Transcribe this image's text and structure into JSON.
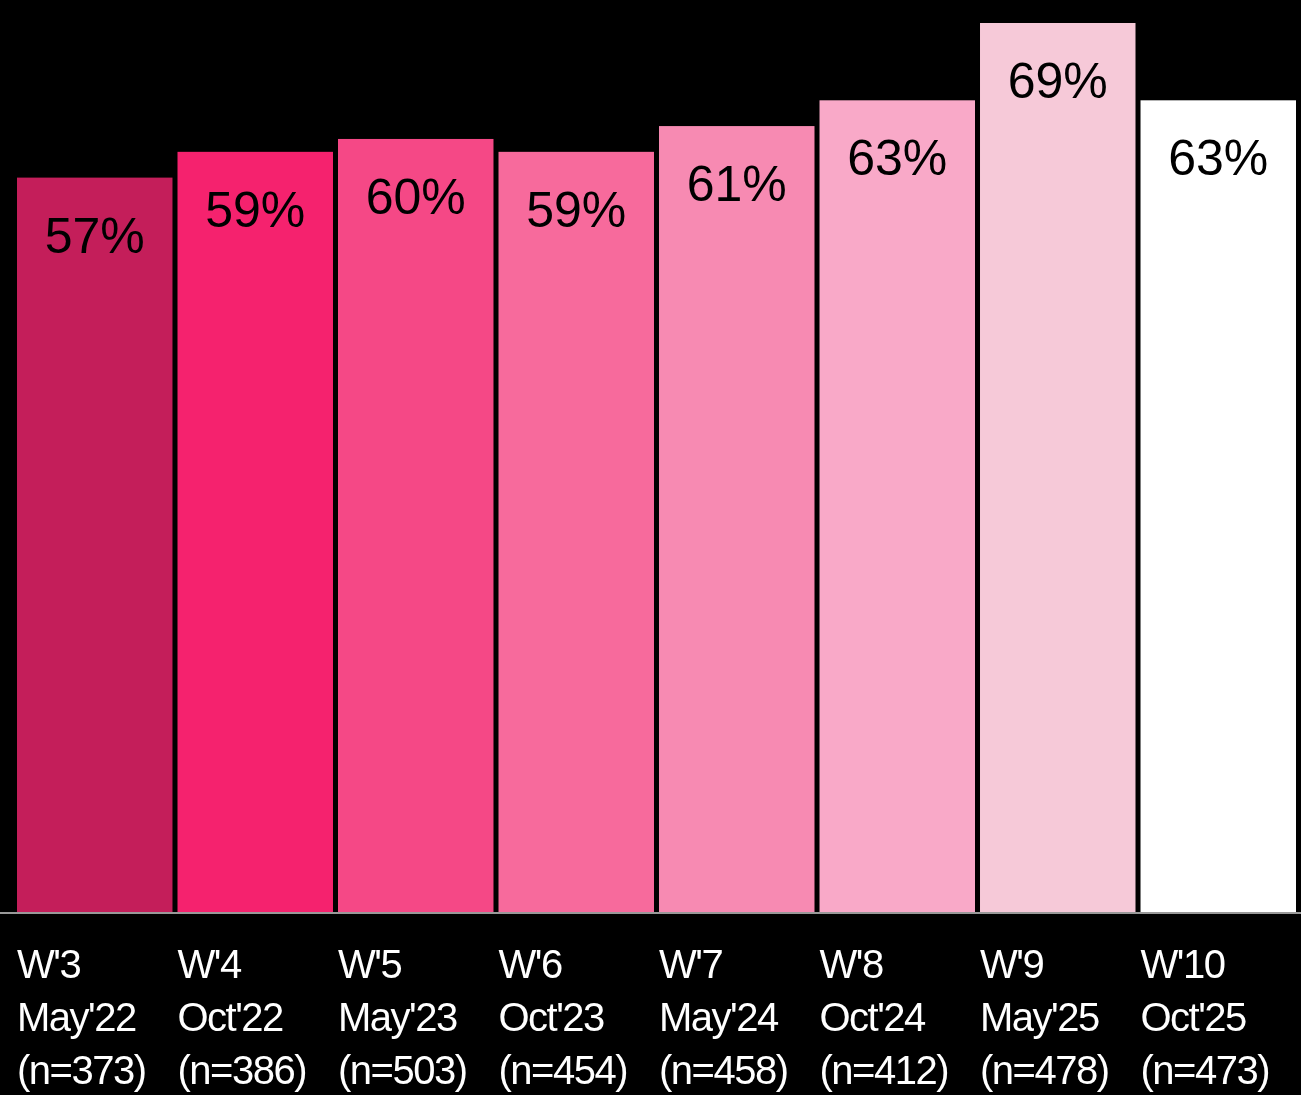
{
  "chart_data": {
    "type": "bar",
    "categories": [
      "W'3\nMay'22\n(n=373)",
      "W'4\nOct'22\n(n=386)",
      "W'5\nMay'23\n(n=503)",
      "W'6\nOct'23\n(n=454)",
      "W'7\nMay'24\n(n=458)",
      "W'8\nOct'24\n(n=412)",
      "W'9\nMay'25\n(n=478)",
      "W'10\nOct'25\n(n=473)"
    ],
    "values": [
      57,
      59,
      60,
      59,
      61,
      63,
      69,
      63
    ],
    "value_labels": [
      "57%",
      "59%",
      "60%",
      "59%",
      "61%",
      "63%",
      "69%",
      "63%"
    ],
    "colors": [
      "#c41e5a",
      "#f5226e",
      "#f54886",
      "#f76a9c",
      "#f78ab2",
      "#f9a9c8",
      "#f6c9d8",
      "#ffffff"
    ],
    "relative": false
  }
}
